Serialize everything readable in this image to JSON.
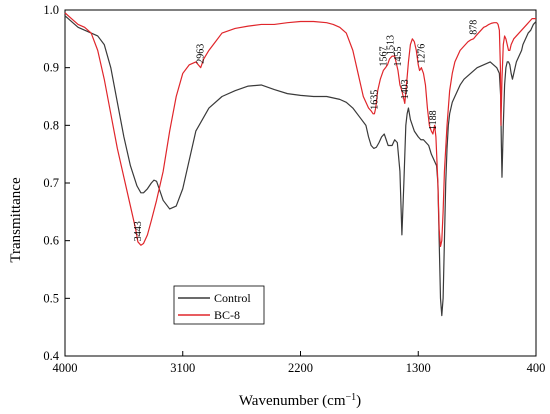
{
  "chart_data": {
    "type": "line",
    "xlabel_prefix": "Wavenumber (cm",
    "xlabel_sup": "−1",
    "xlabel_suffix": ")",
    "ylabel": "Transmittance",
    "xlim": [
      4000,
      400
    ],
    "ylim": [
      0.4,
      1.0
    ],
    "x_ticks": [
      4000,
      3100,
      2200,
      1300,
      400
    ],
    "x_tick_labels": [
      "4000",
      "3100",
      "2200",
      "1300",
      "400"
    ],
    "y_ticks": [
      0.4,
      0.5,
      0.6,
      0.7,
      0.8,
      0.9,
      1.0
    ],
    "y_tick_labels": [
      "0.4",
      "0.5",
      "0.6",
      "0.7",
      "0.8",
      "0.9",
      "1.0"
    ],
    "grid": false,
    "legend_position": "bottom-left",
    "series": [
      {
        "name": "Control",
        "color": "#3a3a3a",
        "x": [
          4000,
          3900,
          3800,
          3750,
          3700,
          3650,
          3600,
          3550,
          3500,
          3450,
          3420,
          3400,
          3370,
          3340,
          3320,
          3300,
          3280,
          3250,
          3200,
          3150,
          3100,
          3000,
          2900,
          2800,
          2700,
          2600,
          2500,
          2400,
          2300,
          2200,
          2100,
          2000,
          1900,
          1850,
          1800,
          1750,
          1700,
          1680,
          1660,
          1640,
          1620,
          1600,
          1580,
          1560,
          1545,
          1530,
          1515,
          1500,
          1480,
          1460,
          1440,
          1425,
          1410,
          1395,
          1385,
          1375,
          1360,
          1345,
          1330,
          1300,
          1280,
          1260,
          1240,
          1220,
          1200,
          1180,
          1160,
          1150,
          1140,
          1130,
          1120,
          1110,
          1100,
          1090,
          1080,
          1070,
          1060,
          1050,
          1040,
          1020,
          1000,
          980,
          950,
          900,
          850,
          800,
          750,
          700,
          680,
          670,
          665,
          660,
          650,
          640,
          630,
          620,
          610,
          600,
          590,
          580,
          570,
          560,
          550,
          530,
          510,
          500,
          490,
          480,
          470,
          460,
          440,
          420,
          400
        ],
        "y": [
          0.99,
          0.97,
          0.96,
          0.955,
          0.94,
          0.9,
          0.84,
          0.78,
          0.73,
          0.695,
          0.683,
          0.683,
          0.69,
          0.7,
          0.705,
          0.703,
          0.69,
          0.67,
          0.655,
          0.66,
          0.69,
          0.79,
          0.83,
          0.85,
          0.86,
          0.868,
          0.87,
          0.862,
          0.855,
          0.852,
          0.85,
          0.85,
          0.845,
          0.84,
          0.83,
          0.815,
          0.8,
          0.78,
          0.765,
          0.76,
          0.762,
          0.77,
          0.78,
          0.785,
          0.775,
          0.765,
          0.765,
          0.765,
          0.775,
          0.77,
          0.72,
          0.61,
          0.7,
          0.8,
          0.82,
          0.83,
          0.81,
          0.8,
          0.79,
          0.78,
          0.775,
          0.775,
          0.77,
          0.765,
          0.75,
          0.74,
          0.73,
          0.7,
          0.6,
          0.5,
          0.47,
          0.5,
          0.6,
          0.7,
          0.76,
          0.8,
          0.82,
          0.83,
          0.84,
          0.85,
          0.86,
          0.87,
          0.88,
          0.89,
          0.9,
          0.905,
          0.91,
          0.9,
          0.89,
          0.85,
          0.77,
          0.71,
          0.8,
          0.87,
          0.9,
          0.91,
          0.91,
          0.905,
          0.89,
          0.88,
          0.89,
          0.9,
          0.91,
          0.92,
          0.93,
          0.94,
          0.945,
          0.95,
          0.955,
          0.96,
          0.965,
          0.975,
          0.98
        ]
      },
      {
        "name": "BC-8",
        "color": "#e0262b",
        "x": [
          4000,
          3950,
          3900,
          3850,
          3800,
          3750,
          3700,
          3650,
          3600,
          3550,
          3500,
          3460,
          3443,
          3420,
          3400,
          3370,
          3340,
          3300,
          3250,
          3200,
          3150,
          3100,
          3050,
          3000,
          2963,
          2940,
          2900,
          2850,
          2800,
          2700,
          2600,
          2500,
          2400,
          2300,
          2200,
          2100,
          2000,
          1950,
          1900,
          1850,
          1800,
          1780,
          1760,
          1740,
          1720,
          1700,
          1680,
          1660,
          1645,
          1635,
          1625,
          1610,
          1590,
          1567,
          1550,
          1535,
          1520,
          1500,
          1480,
          1455,
          1440,
          1425,
          1403,
          1390,
          1375,
          1360,
          1345,
          1330,
          1315,
          1300,
          1290,
          1276,
          1260,
          1245,
          1230,
          1215,
          1200,
          1188,
          1175,
          1165,
          1150,
          1140,
          1130,
          1120,
          1110,
          1100,
          1080,
          1060,
          1040,
          1020,
          1000,
          980,
          960,
          940,
          920,
          900,
          878,
          860,
          840,
          820,
          800,
          780,
          760,
          740,
          720,
          700,
          690,
          680,
          672,
          668,
          660,
          650,
          640,
          630,
          620,
          610,
          600,
          590,
          570,
          550,
          530,
          510,
          490,
          470,
          450,
          430,
          400
        ],
        "y": [
          0.995,
          0.985,
          0.975,
          0.97,
          0.96,
          0.93,
          0.88,
          0.82,
          0.76,
          0.71,
          0.66,
          0.62,
          0.598,
          0.592,
          0.595,
          0.61,
          0.635,
          0.67,
          0.72,
          0.79,
          0.85,
          0.89,
          0.905,
          0.91,
          0.9,
          0.915,
          0.93,
          0.945,
          0.96,
          0.968,
          0.972,
          0.975,
          0.975,
          0.978,
          0.98,
          0.98,
          0.978,
          0.975,
          0.97,
          0.96,
          0.93,
          0.91,
          0.89,
          0.87,
          0.85,
          0.84,
          0.83,
          0.825,
          0.82,
          0.82,
          0.83,
          0.86,
          0.88,
          0.895,
          0.9,
          0.905,
          0.915,
          0.92,
          0.92,
          0.895,
          0.87,
          0.86,
          0.838,
          0.87,
          0.91,
          0.94,
          0.95,
          0.945,
          0.93,
          0.905,
          0.895,
          0.9,
          0.89,
          0.87,
          0.83,
          0.8,
          0.79,
          0.785,
          0.8,
          0.78,
          0.7,
          0.62,
          0.59,
          0.6,
          0.65,
          0.72,
          0.8,
          0.86,
          0.89,
          0.91,
          0.92,
          0.93,
          0.935,
          0.94,
          0.945,
          0.948,
          0.95,
          0.955,
          0.96,
          0.965,
          0.97,
          0.972,
          0.975,
          0.977,
          0.978,
          0.978,
          0.975,
          0.965,
          0.9,
          0.8,
          0.88,
          0.94,
          0.955,
          0.95,
          0.94,
          0.93,
          0.93,
          0.94,
          0.95,
          0.955,
          0.96,
          0.965,
          0.97,
          0.975,
          0.98,
          0.985,
          0.985
        ]
      }
    ],
    "annotations": [
      {
        "text": "3443",
        "x": 3443,
        "y": 0.592
      },
      {
        "text": "2963",
        "x": 2963,
        "y": 0.9
      },
      {
        "text": "1635",
        "x": 1635,
        "y": 0.82
      },
      {
        "text": "1567",
        "x": 1567,
        "y": 0.895
      },
      {
        "text": "1513",
        "x": 1513,
        "y": 0.915
      },
      {
        "text": "1455",
        "x": 1455,
        "y": 0.895
      },
      {
        "text": "1403",
        "x": 1403,
        "y": 0.838
      },
      {
        "text": "1276",
        "x": 1276,
        "y": 0.9
      },
      {
        "text": "1188",
        "x": 1188,
        "y": 0.785
      },
      {
        "text": "878",
        "x": 878,
        "y": 0.95
      }
    ]
  }
}
